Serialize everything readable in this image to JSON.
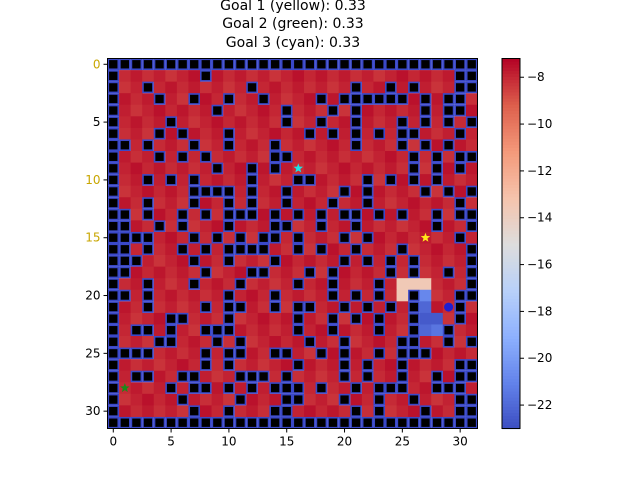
{
  "title_lines": [
    "Goal 1 (yellow): 0.33",
    "Goal 2 (green): 0.33",
    "Goal 3 (cyan): 0.33"
  ],
  "chart_data": {
    "type": "heatmap",
    "grid_size": 32,
    "x_ticks": [
      0,
      5,
      10,
      15,
      20,
      25,
      30
    ],
    "y_ticks": [
      0,
      5,
      10,
      15,
      20,
      25,
      30
    ],
    "y_tick_labels_highlighted": [
      0,
      10,
      15
    ],
    "colorbar": {
      "colormap": "coolwarm",
      "range": [
        -23,
        -7.2
      ],
      "ticks": [
        -8,
        -10,
        -12,
        -14,
        -16,
        -18,
        -20,
        -22
      ]
    },
    "base_value": -7.8,
    "walls": [
      "################################",
      "#.......#.....................##",
      "#..#........#........#..#.#...##",
      "#...#..#..#..#....#.######.#.##.",
      "#........#.....#...#.#.....#.##.",
      "#....#.........#..#..#...#.#.#.#",
      "#...#.#...#......#.#.#.#.##...#.",
      "##.#...#..#...#......#...#.#.#..",
      "#...#.#.#.....##..........#.#.##",
      "#........#..#.#...........#.#.#.",
      "#..#.#.#....#...##....#.#.#.#...",
      "#......####.#..#....#.#....#.#.#",
      "#..#...#..#.#..#...#..#.......#.",
      "##.#..#.#.###.#.#.#.##.#.#..#.##",
      "##..#.#...#...##..#..#......#..#",
      "####...#.#.#.##.#...#.#.......#.",
      "##.#..#.#.####..#.#..#...#.....#",
      "###....#..#...#.....#.#.#.#....#",
      "##......#...##...#.#....#.#..#.#",
      "#..#...#...#....#..#...#.......#",
      "##.#......#...#....#.#.#..#...##",
      "#..#....#.##..#.##..#.#.#.#...#.",
      "#....##...#.....#..#.#.#..#...#.",
      "#.##.#..###.....#..#...#..#..#..",
      "#...##...#.#.....#..#....##..#.#",
      "####....#.##..##..#.#..#.###....",
      "#.......#.#.....#...#.#..#....##",
      "#.##..##...###.#....#.#..#..#.##",
      "#....#.##.#.#.###.#..#.###..###.",
      "#.....#....#...##...#..#..#...##",
      "#......#..#...##.....#.#...#..##",
      "################################"
    ],
    "low_value_cells": [
      {
        "row": 19,
        "col": 25,
        "value": -13.5
      },
      {
        "row": 19,
        "col": 26,
        "value": -13.5
      },
      {
        "row": 19,
        "col": 27,
        "value": -13.5
      },
      {
        "row": 20,
        "col": 25,
        "value": -13.5
      },
      {
        "row": 20,
        "col": 26,
        "value": -20.8
      },
      {
        "row": 20,
        "col": 27,
        "value": -20.8
      },
      {
        "row": 21,
        "col": 26,
        "value": -21.5
      },
      {
        "row": 21,
        "col": 27,
        "value": -22.0
      },
      {
        "row": 22,
        "col": 27,
        "value": -22.5
      },
      {
        "row": 22,
        "col": 28,
        "value": -22.5
      },
      {
        "row": 23,
        "col": 27,
        "value": -22.0
      },
      {
        "row": 23,
        "col": 28,
        "value": -21.5
      },
      {
        "row": 23,
        "col": 29,
        "value": -22.5
      }
    ],
    "markers": [
      {
        "name": "goal-1",
        "label": "Goal 1 (yellow)",
        "color": "#ffe619",
        "shape": "star",
        "x": 27,
        "y": 15
      },
      {
        "name": "goal-2",
        "label": "Goal 2 (green)",
        "color": "#1a8a1a",
        "shape": "star",
        "x": 1,
        "y": 28
      },
      {
        "name": "goal-3",
        "label": "Goal 3 (cyan)",
        "color": "#19e6e6",
        "shape": "star",
        "x": 16,
        "y": 9
      },
      {
        "name": "agent",
        "label": "agent",
        "color": "#1f1fd0",
        "shape": "circle",
        "x": 29,
        "y": 21
      }
    ],
    "wall_fill": "#000000",
    "wall_edge": "#3a48c8"
  }
}
